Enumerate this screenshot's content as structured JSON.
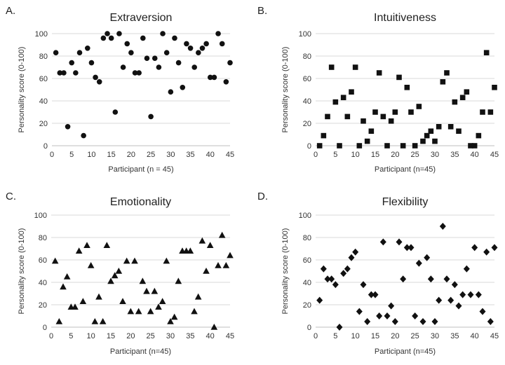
{
  "chart_data": [
    {
      "type": "scatter",
      "panel": "A.",
      "title": "Extraversion",
      "xlabel": "Participant (n = 45)",
      "ylabel": "Personality score (0-100)",
      "marker": "circle",
      "xlim": [
        0,
        45
      ],
      "ylim": [
        0,
        100
      ],
      "xticks": [
        0,
        5,
        10,
        15,
        20,
        25,
        30,
        35,
        40,
        45
      ],
      "yticks": [
        0,
        20,
        40,
        60,
        80,
        100
      ],
      "grid": true,
      "x": [
        1,
        2,
        3,
        4,
        5,
        6,
        7,
        8,
        9,
        10,
        11,
        12,
        13,
        14,
        15,
        16,
        17,
        18,
        19,
        20,
        21,
        22,
        23,
        24,
        25,
        26,
        27,
        28,
        29,
        30,
        31,
        32,
        33,
        34,
        35,
        36,
        37,
        38,
        39,
        40,
        41,
        42,
        43,
        44,
        45
      ],
      "y": [
        83,
        65,
        65,
        17,
        74,
        65,
        83,
        9,
        87,
        74,
        61,
        57,
        96,
        100,
        96,
        30,
        100,
        70,
        91,
        83,
        65,
        65,
        96,
        78,
        26,
        78,
        70,
        100,
        83,
        48,
        96,
        74,
        52,
        91,
        87,
        70,
        83,
        87,
        91,
        61,
        61,
        100,
        91,
        57,
        74
      ]
    },
    {
      "type": "scatter",
      "panel": "B.",
      "title": "Intuitiveness",
      "xlabel": "Participant (n=45)",
      "ylabel": "Personality score (0-100)",
      "marker": "square",
      "xlim": [
        0,
        45
      ],
      "ylim": [
        0,
        100
      ],
      "xticks": [
        0,
        5,
        10,
        15,
        20,
        25,
        30,
        35,
        40,
        45
      ],
      "yticks": [
        0,
        20,
        40,
        60,
        80,
        100
      ],
      "grid": true,
      "x": [
        1,
        2,
        3,
        4,
        5,
        6,
        7,
        8,
        9,
        10,
        11,
        12,
        13,
        14,
        15,
        16,
        17,
        18,
        19,
        20,
        21,
        22,
        23,
        24,
        25,
        26,
        27,
        28,
        29,
        30,
        31,
        32,
        33,
        34,
        35,
        36,
        37,
        38,
        39,
        40,
        41,
        42,
        43,
        44,
        45
      ],
      "y": [
        0,
        9,
        26,
        70,
        39,
        0,
        43,
        26,
        48,
        70,
        0,
        22,
        4,
        13,
        30,
        65,
        26,
        0,
        22,
        30,
        61,
        0,
        52,
        30,
        0,
        35,
        4,
        9,
        13,
        4,
        17,
        57,
        65,
        17,
        39,
        13,
        43,
        48,
        0,
        0,
        9,
        30,
        83,
        30,
        52
      ]
    },
    {
      "type": "scatter",
      "panel": "C.",
      "title": "Emotionality",
      "xlabel": "Participant (n=45)",
      "ylabel": "Personality score (0-100)",
      "marker": "triangle",
      "xlim": [
        0,
        45
      ],
      "ylim": [
        0,
        100
      ],
      "xticks": [
        0,
        5,
        10,
        15,
        20,
        25,
        30,
        35,
        40,
        45
      ],
      "yticks": [
        0,
        20,
        40,
        60,
        80,
        100
      ],
      "grid": true,
      "x": [
        1,
        2,
        3,
        4,
        5,
        6,
        7,
        8,
        9,
        10,
        11,
        12,
        13,
        14,
        15,
        16,
        17,
        18,
        19,
        20,
        21,
        22,
        23,
        24,
        25,
        26,
        27,
        28,
        29,
        30,
        31,
        32,
        33,
        34,
        35,
        36,
        37,
        38,
        39,
        40,
        41,
        42,
        43,
        44,
        45
      ],
      "y": [
        59,
        5,
        36,
        45,
        18,
        18,
        68,
        23,
        73,
        55,
        5,
        27,
        5,
        73,
        41,
        46,
        50,
        23,
        59,
        14,
        59,
        14,
        41,
        32,
        14,
        32,
        18,
        23,
        59,
        5,
        9,
        41,
        68,
        68,
        68,
        14,
        27,
        77,
        50,
        73,
        0,
        55,
        82,
        55,
        64
      ]
    },
    {
      "type": "scatter",
      "panel": "D.",
      "title": "Flexibility",
      "xlabel": "Participant (n=45)",
      "ylabel": "Personality score (0-100)",
      "marker": "diamond",
      "xlim": [
        0,
        45
      ],
      "ylim": [
        0,
        100
      ],
      "xticks": [
        0,
        5,
        10,
        15,
        20,
        25,
        30,
        35,
        40,
        45
      ],
      "yticks": [
        0,
        20,
        40,
        60,
        80,
        100
      ],
      "grid": true,
      "x": [
        1,
        2,
        3,
        4,
        5,
        6,
        7,
        8,
        9,
        10,
        11,
        12,
        13,
        14,
        15,
        16,
        17,
        18,
        19,
        20,
        21,
        22,
        23,
        24,
        25,
        26,
        27,
        28,
        29,
        30,
        31,
        32,
        33,
        34,
        35,
        36,
        37,
        38,
        39,
        40,
        41,
        42,
        43,
        44,
        45
      ],
      "y": [
        24,
        52,
        43,
        43,
        38,
        0,
        48,
        52,
        62,
        67,
        14,
        38,
        5,
        29,
        29,
        10,
        76,
        10,
        19,
        5,
        76,
        43,
        71,
        71,
        10,
        57,
        5,
        62,
        43,
        5,
        24,
        90,
        43,
        24,
        38,
        19,
        29,
        52,
        29,
        71,
        29,
        14,
        67,
        5,
        71
      ]
    }
  ]
}
